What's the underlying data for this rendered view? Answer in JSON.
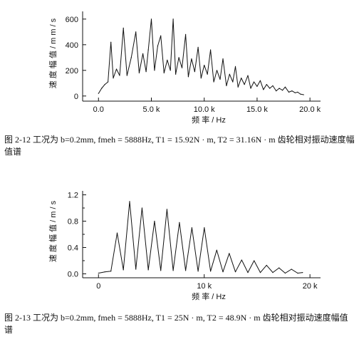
{
  "chart_data": [
    {
      "type": "line",
      "caption": "图 2-12 工况为 b=0.2mm, fmeh = 5888Hz, T1 = 15.92N · m, T2 = 31.16N · m 齿轮相对振动速度幅值谱",
      "xlabel": "频 率 / Hz",
      "ylabel": "速 度 幅 值 / m m / s",
      "xlim": [
        -1500,
        21000
      ],
      "ylim": [
        -40,
        660
      ],
      "xticks": [
        0,
        5000,
        10000,
        15000,
        20000
      ],
      "xtick_labels": [
        "0.0",
        "5.0 k",
        "10.0 k",
        "15.0 k",
        "20.0 k"
      ],
      "yticks": [
        0,
        200,
        400,
        600
      ],
      "ytick_labels": [
        "0",
        "200",
        "400",
        "600"
      ],
      "grid": false,
      "series": [
        {
          "x": [
            0,
            300,
            600,
            900,
            1177,
            1400,
            1700,
            2000,
            2355,
            2700,
            3100,
            3532,
            3850,
            4200,
            4500,
            4709,
            5000,
            5300,
            5600,
            5888,
            6200,
            6500,
            6800,
            7065,
            7300,
            7600,
            7900,
            8242,
            8500,
            8800,
            9100,
            9420,
            9700,
            10000,
            10300,
            10597,
            10900,
            11200,
            11500,
            11774,
            12100,
            12400,
            12700,
            12952,
            13200,
            13500,
            13800,
            14129,
            14400,
            14700,
            15000,
            15300,
            15600,
            15900,
            16200,
            16484,
            16800,
            17100,
            17400,
            17661,
            18000,
            18300,
            18600,
            18839,
            19100,
            19400
          ],
          "values": [
            20,
            60,
            90,
            110,
            420,
            140,
            210,
            160,
            530,
            160,
            300,
            500,
            180,
            330,
            190,
            360,
            600,
            200,
            390,
            470,
            180,
            280,
            200,
            600,
            170,
            300,
            220,
            480,
            150,
            290,
            190,
            380,
            140,
            240,
            170,
            360,
            110,
            200,
            130,
            290,
            80,
            170,
            110,
            230,
            70,
            140,
            90,
            160,
            60,
            110,
            75,
            120,
            50,
            90,
            60,
            80,
            40,
            60,
            45,
            70,
            30,
            40,
            25,
            30,
            15,
            10
          ]
        }
      ]
    },
    {
      "type": "line",
      "caption": "图 2-13 工况为 b=0.2mm, fmeh = 5888Hz, T1 = 25N · m, T2 = 48.9N · m 齿轮相对振动速度幅值谱",
      "xlabel": "频 率 / Hz",
      "ylabel": "速 度 幅 值 / m / s",
      "xlim": [
        -1500,
        21000
      ],
      "ylim": [
        -0.06,
        1.26
      ],
      "xticks": [
        0,
        10000,
        20000
      ],
      "xtick_labels": [
        "0",
        "10 k",
        "20 k"
      ],
      "yticks": [
        0,
        0.4,
        0.8,
        1.2
      ],
      "ytick_labels": [
        "0.0",
        "0.4",
        "0.8",
        "1.2"
      ],
      "yticks_minor": [
        0.2,
        0.6,
        1.0
      ],
      "grid": false,
      "series": [
        {
          "x": [
            0,
            600,
            1177,
            1766,
            2355,
            2944,
            3532,
            4121,
            4709,
            5298,
            5888,
            6477,
            7065,
            7654,
            8242,
            8831,
            9420,
            10009,
            10597,
            11186,
            11774,
            12363,
            12952,
            13541,
            14129,
            14718,
            15306,
            15895,
            16484,
            17073,
            17661,
            18250,
            18839,
            19300
          ],
          "values": [
            0.01,
            0.03,
            0.04,
            0.62,
            0.06,
            1.1,
            0.07,
            1.0,
            0.06,
            0.8,
            0.05,
            0.98,
            0.05,
            0.78,
            0.05,
            0.7,
            0.04,
            0.7,
            0.04,
            0.36,
            0.03,
            0.31,
            0.03,
            0.21,
            0.02,
            0.2,
            0.02,
            0.13,
            0.02,
            0.09,
            0.01,
            0.07,
            0.01,
            0.02
          ]
        }
      ]
    }
  ]
}
